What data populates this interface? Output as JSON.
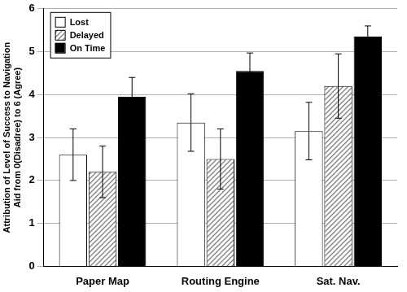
{
  "chart_data": {
    "type": "bar",
    "y_label": [
      "Attribution of Level of Success to Navigation",
      "Aid from 0(Disadree) to 6 (Agree)"
    ],
    "categories": [
      "Paper Map",
      "Routing Engine",
      "Sat. Nav."
    ],
    "series": [
      {
        "name": "Lost",
        "color": "#ffffff",
        "values": [
          2.6,
          3.35,
          3.15
        ],
        "errors": [
          0.6,
          0.67,
          0.67
        ]
      },
      {
        "name": "Delayed",
        "color": "#808080",
        "values": [
          2.2,
          2.5,
          4.2
        ],
        "errors": [
          0.6,
          0.7,
          0.75
        ]
      },
      {
        "name": "On Time",
        "color": "#000000",
        "values": [
          3.95,
          4.55,
          5.35
        ],
        "errors": [
          0.45,
          0.42,
          0.25
        ]
      }
    ],
    "ylim": [
      0,
      6
    ],
    "yticks": [
      0,
      1,
      2,
      3,
      4,
      5,
      6
    ],
    "grid": true,
    "legend": "upper left"
  }
}
